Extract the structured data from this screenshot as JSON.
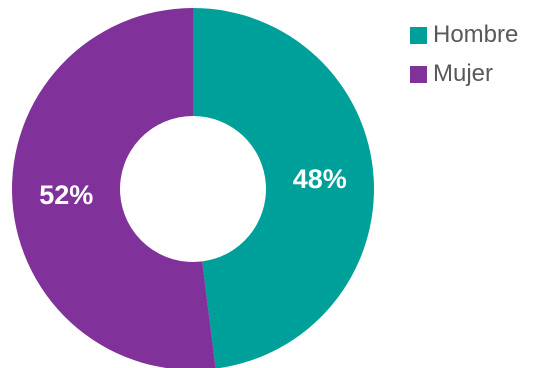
{
  "chart_data": {
    "type": "pie",
    "variant": "donut",
    "slices": [
      {
        "name": "Hombre",
        "value": 48,
        "label": "48%",
        "color": "#00A09A"
      },
      {
        "name": "Mujer",
        "value": 52,
        "label": "52%",
        "color": "#80319A"
      }
    ],
    "start": "top",
    "direction": "clockwise",
    "legend": "top-right",
    "title": ""
  }
}
